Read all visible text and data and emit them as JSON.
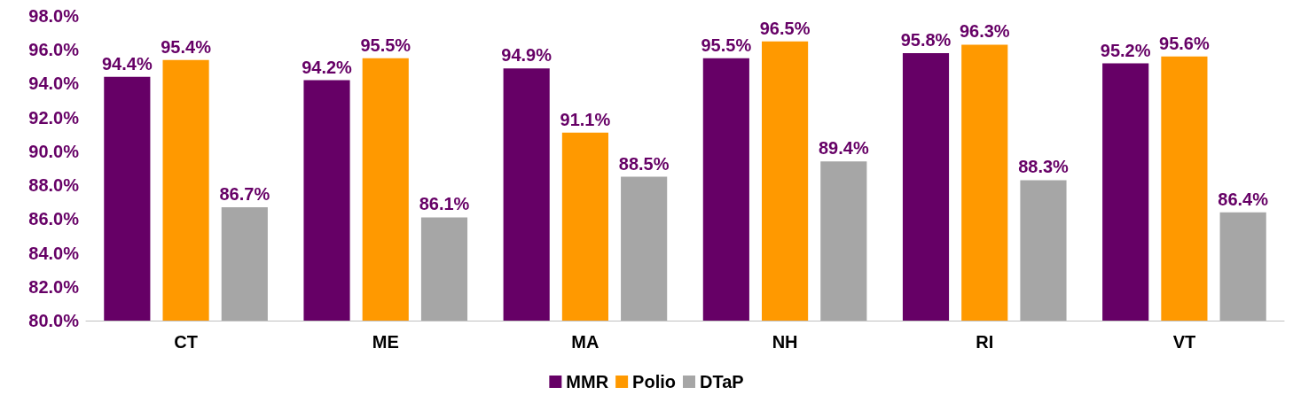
{
  "chart_data": {
    "type": "bar",
    "categories": [
      "CT",
      "ME",
      "MA",
      "NH",
      "RI",
      "VT"
    ],
    "series": [
      {
        "name": "MMR",
        "color": "#660066",
        "values": [
          94.4,
          94.2,
          94.9,
          95.5,
          95.8,
          95.2
        ],
        "value_labels": [
          "94.4%",
          "94.2%",
          "94.9%",
          "95.5%",
          "95.8%",
          "95.2%"
        ]
      },
      {
        "name": "Polio",
        "color": "#ff9900",
        "values": [
          95.4,
          95.5,
          91.1,
          96.5,
          96.3,
          95.6
        ],
        "value_labels": [
          "95.4%",
          "95.5%",
          "91.1%",
          "96.5%",
          "96.3%",
          "95.6%"
        ]
      },
      {
        "name": "DTaP",
        "color": "#a6a6a6",
        "values": [
          86.7,
          86.1,
          88.5,
          89.4,
          88.3,
          86.4
        ],
        "value_labels": [
          "86.7%",
          "86.1%",
          "88.5%",
          "89.4%",
          "88.3%",
          "86.4%"
        ]
      }
    ],
    "ylim": [
      80,
      98
    ],
    "yticks": [
      {
        "value": 80,
        "label": "80.0%"
      },
      {
        "value": 82,
        "label": "82.0%"
      },
      {
        "value": 84,
        "label": "84.0%"
      },
      {
        "value": 86,
        "label": "86.0%"
      },
      {
        "value": 88,
        "label": "88.0%"
      },
      {
        "value": 90,
        "label": "90.0%"
      },
      {
        "value": 92,
        "label": "92.0%"
      },
      {
        "value": 94,
        "label": "94.0%"
      },
      {
        "value": 96,
        "label": "96.0%"
      },
      {
        "value": 98,
        "label": "98.0%"
      }
    ],
    "grid": false,
    "legend": "bottom"
  }
}
